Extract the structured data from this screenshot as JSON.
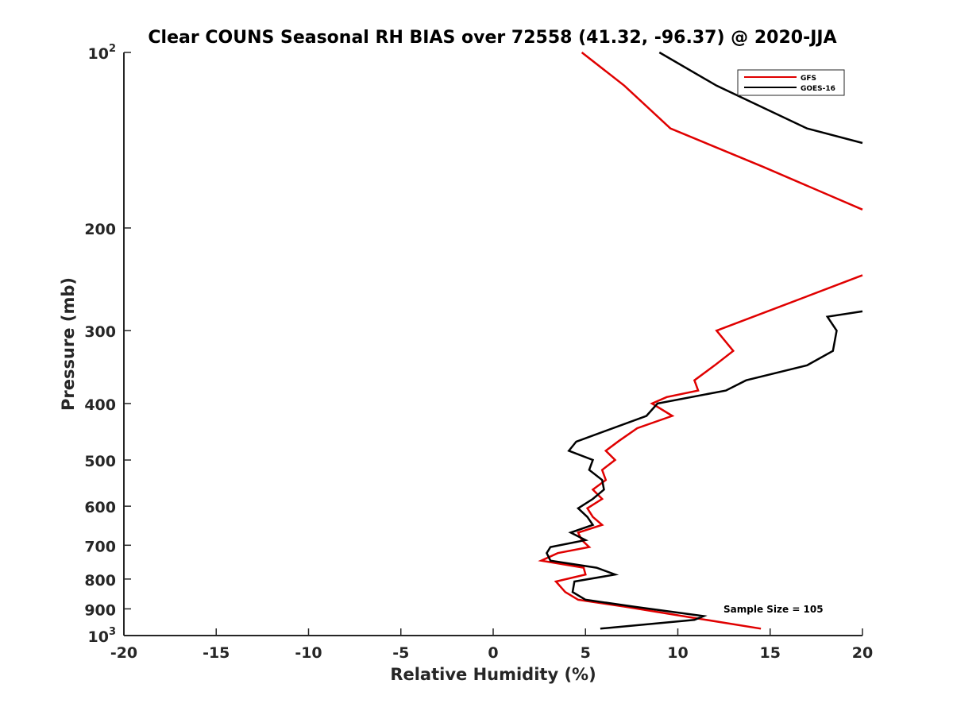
{
  "chart_data": {
    "type": "line",
    "title": "Clear COUNS Seasonal RH BIAS over 72558 (41.32, -96.37) @ 2020-JJA",
    "xlabel": "Relative Humidity (%)",
    "ylabel": "Pressure (mb)",
    "xlim": [
      -20,
      20
    ],
    "ylim": [
      100,
      1000
    ],
    "yscale": "log",
    "y_reversed": true,
    "grid": false,
    "legend_position": "top-right",
    "annotation": "Sample Size = 105",
    "x_ticks": [
      -20,
      -15,
      -10,
      -5,
      0,
      5,
      10,
      15,
      20
    ],
    "x_tick_labels": [
      "-20",
      "-15",
      "-10",
      "-5",
      "0",
      "5",
      "10",
      "15",
      "20"
    ],
    "y_ticks": [
      100,
      200,
      300,
      400,
      500,
      600,
      700,
      800,
      900,
      1000
    ],
    "y_tick_labels": [
      {
        "base": "10",
        "sup": "2"
      },
      {
        "base": "200",
        "sup": ""
      },
      {
        "base": "300",
        "sup": ""
      },
      {
        "base": "400",
        "sup": ""
      },
      {
        "base": "500",
        "sup": ""
      },
      {
        "base": "600",
        "sup": ""
      },
      {
        "base": "700",
        "sup": ""
      },
      {
        "base": "800",
        "sup": ""
      },
      {
        "base": "900",
        "sup": ""
      },
      {
        "base": "10",
        "sup": "3"
      }
    ],
    "series": [
      {
        "name": "GFS",
        "color": "#e00000",
        "segments": [
          [
            [
              4.8,
              100
            ],
            [
              7.1,
              114
            ],
            [
              9.6,
              135
            ],
            [
              14.6,
              157
            ],
            [
              20,
              186
            ]
          ],
          [
            [
              20,
              241
            ],
            [
              17,
              262
            ],
            [
              12.1,
              300
            ],
            [
              13,
              325
            ],
            [
              12,
              344
            ],
            [
              10.9,
              365
            ],
            [
              11.1,
              380
            ],
            [
              9.4,
              390
            ],
            [
              8.6,
              400
            ],
            [
              9.7,
              420
            ],
            [
              7.8,
              441
            ],
            [
              6.8,
              464
            ],
            [
              6.1,
              482
            ],
            [
              6.6,
              500
            ],
            [
              5.9,
              520
            ],
            [
              6.1,
              541
            ],
            [
              5.4,
              562
            ],
            [
              5.9,
              583
            ],
            [
              5.1,
              605
            ],
            [
              5.4,
              626
            ],
            [
              5.9,
              646
            ],
            [
              4.6,
              666
            ],
            [
              4.8,
              686
            ],
            [
              5.2,
              705
            ],
            [
              3.5,
              722
            ],
            [
              2.6,
              744
            ],
            [
              4.9,
              765
            ],
            [
              5,
              786
            ],
            [
              3.4,
              808
            ],
            [
              3.9,
              842
            ],
            [
              4.6,
              868
            ],
            [
              7.2,
              893
            ],
            [
              11.1,
              935
            ],
            [
              14.5,
              973
            ]
          ]
        ]
      },
      {
        "name": "GOES-16",
        "color": "#000000",
        "segments": [
          [
            [
              9,
              100
            ],
            [
              12.1,
              114
            ],
            [
              17,
              135
            ],
            [
              20,
              143
            ]
          ],
          [
            [
              20,
              278
            ],
            [
              18.1,
              284
            ],
            [
              18.6,
              300
            ],
            [
              18.4,
              325
            ],
            [
              17,
              344
            ],
            [
              13.7,
              365
            ],
            [
              12.6,
              380
            ],
            [
              8.9,
              400
            ],
            [
              8.3,
              420
            ],
            [
              4.5,
              465
            ],
            [
              4.1,
              482
            ],
            [
              5.4,
              500
            ],
            [
              5.2,
              520
            ],
            [
              5.9,
              541
            ],
            [
              6,
              562
            ],
            [
              5.4,
              583
            ],
            [
              4.6,
              605
            ],
            [
              5.1,
              626
            ],
            [
              5.4,
              646
            ],
            [
              4.2,
              666
            ],
            [
              5,
              686
            ],
            [
              3.1,
              705
            ],
            [
              2.9,
              722
            ],
            [
              3.1,
              744
            ],
            [
              5.6,
              765
            ],
            [
              6.6,
              786
            ],
            [
              4.4,
              808
            ],
            [
              4.3,
              842
            ],
            [
              5,
              868
            ],
            [
              7.7,
              893
            ],
            [
              11.4,
              926
            ],
            [
              10.9,
              940
            ],
            [
              5.8,
              973
            ]
          ]
        ]
      }
    ]
  }
}
